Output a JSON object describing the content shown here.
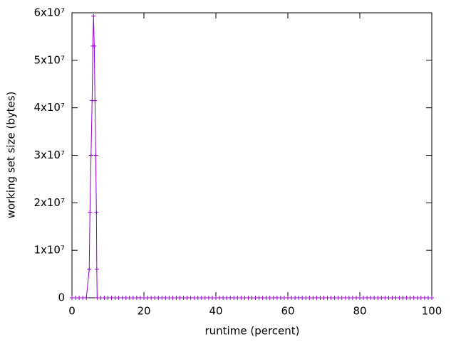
{
  "chart_data": {
    "type": "line",
    "xlabel": "runtime (percent)",
    "ylabel": "working set size (bytes)",
    "x": [
      0,
      1,
      2,
      3,
      4,
      4.8,
      5,
      5.3,
      5.6,
      5.8,
      6,
      6.2,
      6.4,
      6.6,
      6.8,
      6.9,
      7,
      8,
      9,
      10,
      11,
      12,
      13,
      14,
      15,
      16,
      17,
      18,
      19,
      20,
      21,
      22,
      23,
      24,
      25,
      26,
      27,
      28,
      29,
      30,
      31,
      32,
      33,
      34,
      35,
      36,
      37,
      38,
      39,
      40,
      41,
      42,
      43,
      44,
      45,
      46,
      47,
      48,
      49,
      50,
      51,
      52,
      53,
      54,
      55,
      56,
      57,
      58,
      59,
      60,
      61,
      62,
      63,
      64,
      65,
      66,
      67,
      68,
      69,
      70,
      71,
      72,
      73,
      74,
      75,
      76,
      77,
      78,
      79,
      80,
      81,
      82,
      83,
      84,
      85,
      86,
      87,
      88,
      89,
      90,
      91,
      92,
      93,
      94,
      95,
      96,
      97,
      98,
      99,
      100
    ],
    "series": [
      {
        "color": "#9400d3",
        "values": [
          0,
          0,
          0,
          0,
          0,
          6000000,
          18000000,
          30000000,
          41500000,
          53000000,
          59300000,
          53000000,
          41500000,
          30000000,
          18000000,
          6000000,
          0,
          0,
          0,
          0,
          0,
          0,
          0,
          0,
          0,
          0,
          0,
          0,
          0,
          0,
          0,
          0,
          0,
          0,
          0,
          0,
          0,
          0,
          0,
          0,
          0,
          0,
          0,
          0,
          0,
          0,
          0,
          0,
          0,
          0,
          0,
          0,
          0,
          0,
          0,
          0,
          0,
          0,
          0,
          0,
          0,
          0,
          0,
          0,
          0,
          0,
          0,
          0,
          0,
          0,
          0,
          0,
          0,
          0,
          0,
          0,
          0,
          0,
          0,
          0,
          0,
          0,
          0,
          0,
          0,
          0,
          0,
          0,
          0,
          0,
          0,
          0,
          0,
          0,
          0,
          0,
          0,
          0,
          0,
          0,
          0,
          0,
          0,
          0,
          0,
          0,
          0,
          0,
          0,
          0
        ]
      }
    ],
    "xlim": [
      0,
      100
    ],
    "xticks": [
      0,
      20,
      40,
      60,
      80,
      100
    ],
    "ylim": [
      0,
      60000000
    ],
    "yticks": [
      0,
      {
        "value": 10000000,
        "label": "1x10⁷"
      },
      {
        "value": 20000000,
        "label": "2x10⁷"
      },
      {
        "value": 30000000,
        "label": "3x10⁷"
      },
      {
        "value": 40000000,
        "label": "4x10⁷"
      },
      {
        "value": 50000000,
        "label": "5x10⁷"
      },
      {
        "value": 60000000,
        "label": "6x10⁷"
      }
    ],
    "grid": false
  }
}
